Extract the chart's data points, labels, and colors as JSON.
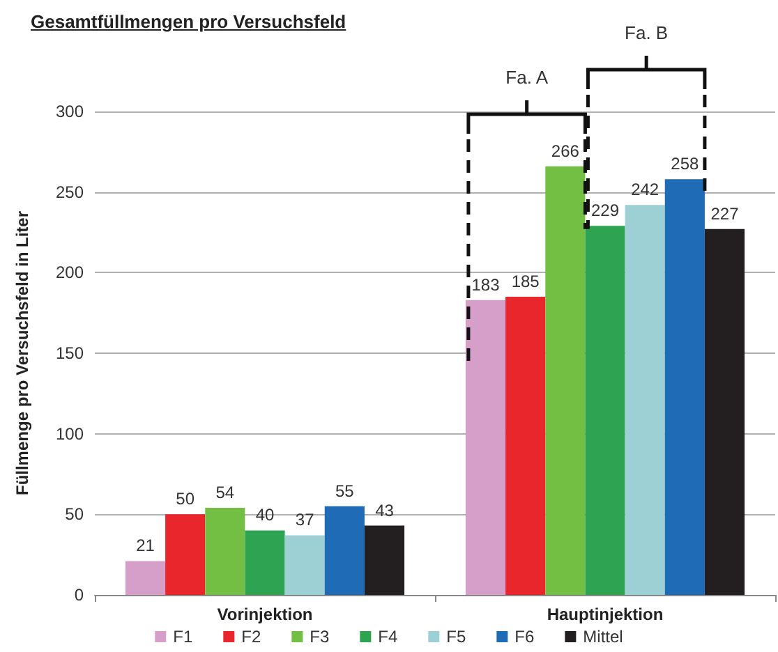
{
  "chart_data": {
    "type": "bar",
    "title": "Gesamtfüllmengen pro Versuchsfeld",
    "ylabel": "Füllmenge pro Versuchsfeld in Liter",
    "categories": [
      "Vorinjektion",
      "Hauptinjektion"
    ],
    "series": [
      {
        "name": "F1",
        "color": "#d69fc9",
        "values": [
          21,
          183
        ]
      },
      {
        "name": "F2",
        "color": "#e8262b",
        "values": [
          50,
          185
        ]
      },
      {
        "name": "F3",
        "color": "#72bf44",
        "values": [
          54,
          266
        ]
      },
      {
        "name": "F4",
        "color": "#2ea352",
        "values": [
          40,
          229
        ]
      },
      {
        "name": "F5",
        "color": "#9dd0d4",
        "values": [
          37,
          242
        ]
      },
      {
        "name": "F6",
        "color": "#1f6bb5",
        "values": [
          55,
          258
        ]
      },
      {
        "name": "Mittel",
        "color": "#231f20",
        "values": [
          43,
          227
        ]
      }
    ],
    "ylim": [
      0,
      300
    ],
    "yticks": [
      0,
      50,
      100,
      150,
      200,
      250,
      300
    ],
    "grid": "y",
    "legend": "bottom",
    "data_labels": true,
    "annotations": [
      "Fa. A",
      "Fa. B"
    ]
  }
}
